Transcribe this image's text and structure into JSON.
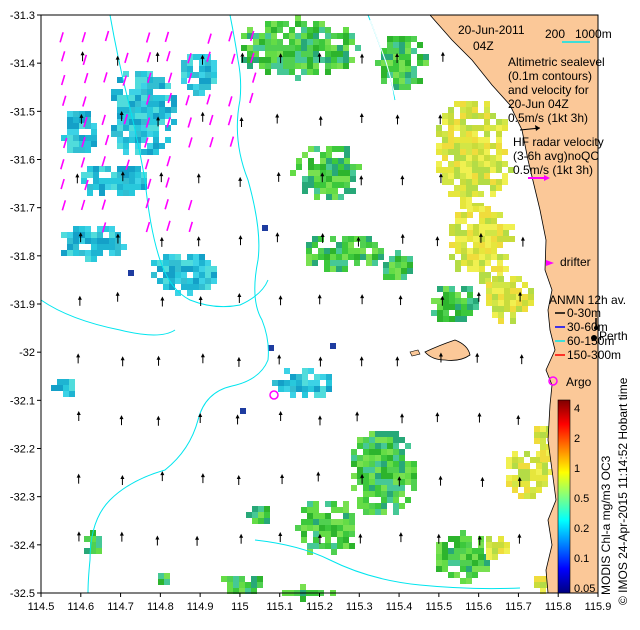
{
  "header": {
    "date": "20-Jun-2011",
    "time": "04Z"
  },
  "scale_bar": {
    "length_label": "200",
    "depth_label": "1000m"
  },
  "legend": {
    "altimetry_lines": [
      "Altimetric sealevel",
      "(0.1m contours)",
      "and velocity for",
      "20-Jun 04Z",
      "0.5m/s (1kt 3h)"
    ],
    "hf_lines": [
      "HF radar velocity",
      "(3-6h avg)noQC",
      "0.5m/s (1kt 3h)"
    ],
    "drifter": "drifter",
    "anmn_title": "ANMN 12h av.",
    "anmn_items": [
      {
        "label": "0-30m",
        "color": "#000000"
      },
      {
        "label": "30-60m",
        "color": "#0000ff"
      },
      {
        "label": "60-150m",
        "color": "#00e5ee"
      },
      {
        "label": "150-300m",
        "color": "#ff0000"
      }
    ],
    "argo": "Argo"
  },
  "places": {
    "perth": "Perth"
  },
  "colorbar": {
    "ticks": [
      "4",
      "2",
      "1",
      "0.5",
      "0.2",
      "0.1",
      "0.05"
    ],
    "title": "MODIS Chl-a mg/m3 OC3",
    "colors": [
      "#00007f",
      "#0000ff",
      "#0080ff",
      "#00ffff",
      "#80ff80",
      "#ffff00",
      "#ff8000",
      "#ff0000",
      "#7f0000"
    ]
  },
  "credit": "© IMOS 24-Apr-2015 11:14:52 Hobart time",
  "axes": {
    "x_ticks": [
      "114.5",
      "114.6",
      "114.7",
      "114.8",
      "114.9",
      "115",
      "115.1",
      "115.2",
      "115.3",
      "115.4",
      "115.5",
      "115.6",
      "115.7",
      "115.8",
      "115.9"
    ],
    "y_ticks": [
      "-31.3",
      "-31.4",
      "-31.5",
      "-31.6",
      "-31.7",
      "-31.8",
      "-31.9",
      "-32",
      "-32.1",
      "-32.2",
      "-32.3",
      "-32.4",
      "-32.5"
    ],
    "x_range": [
      114.5,
      115.9
    ],
    "y_range": [
      -32.5,
      -31.3
    ]
  },
  "colors": {
    "land": "#fbc898",
    "contour": "#00e5ee",
    "hf_arrow": "#ff00ff"
  }
}
